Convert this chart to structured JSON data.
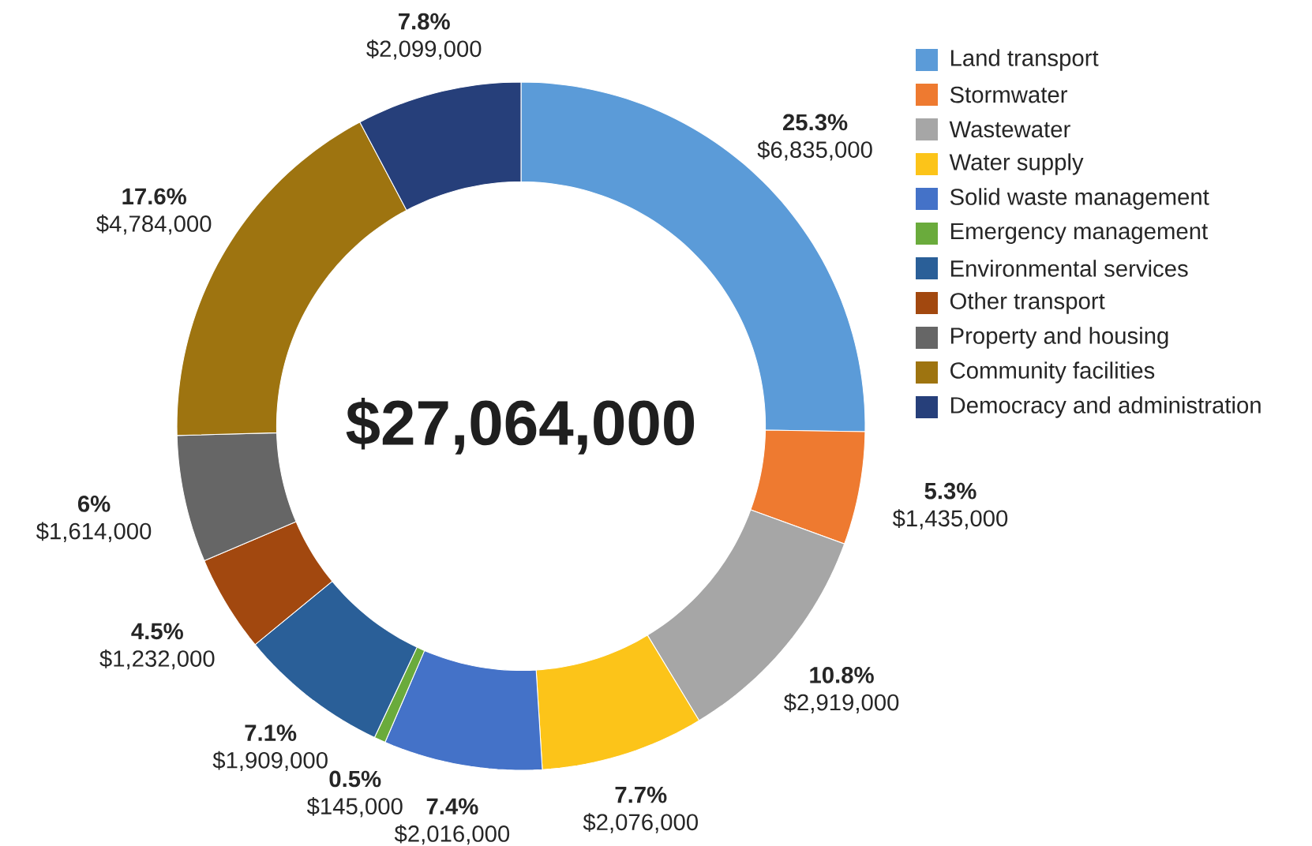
{
  "chart_data": {
    "type": "donut",
    "categories": [
      "Land transport",
      "Stormwater",
      "Wastewater",
      "Water supply",
      "Solid waste management",
      "Emergency management",
      "Environmental services",
      "Other transport",
      "Property and housing",
      "Community facilities",
      "Democracy and administration"
    ],
    "values": [
      6835000,
      1435000,
      2919000,
      2076000,
      2016000,
      145000,
      1909000,
      1232000,
      1614000,
      4784000,
      2099000
    ],
    "value_labels": [
      "$6,835,000",
      "$1,435,000",
      "$2,919,000",
      "$2,076,000",
      "$2,016,000",
      "$145,000",
      "$1,909,000",
      "$1,232,000",
      "$1,614,000",
      "$4,784,000",
      "$2,099,000"
    ],
    "colors": [
      "#5b9bd8",
      "#ee7a30",
      "#a6a6a6",
      "#fcc419",
      "#4472c8",
      "#6aab3c",
      "#2a5f98",
      "#a2480f",
      "#666666",
      "#9e7410",
      "#263f7a"
    ],
    "legend": "top right",
    "annotations": [
      "$27,064,000",
      {
        "text": "25.3%",
        "x": "Land transport"
      },
      {
        "text": "5.3%",
        "x": "Stormwater"
      },
      {
        "text": "10.8%",
        "x": "Wastewater"
      },
      {
        "text": "7.7%",
        "x": "Water supply"
      },
      {
        "text": "7.4%",
        "x": "Solid waste management"
      },
      {
        "text": "0.5%",
        "x": "Emergency management"
      },
      {
        "text": "7.1%",
        "x": "Environmental services"
      },
      {
        "text": "4.5%",
        "x": "Other transport"
      },
      {
        "text": "6%",
        "x": "Property and housing"
      },
      {
        "text": "17.6%",
        "x": "Community facilities"
      },
      {
        "text": "7.8%",
        "x": "Democracy and administration"
      }
    ]
  }
}
